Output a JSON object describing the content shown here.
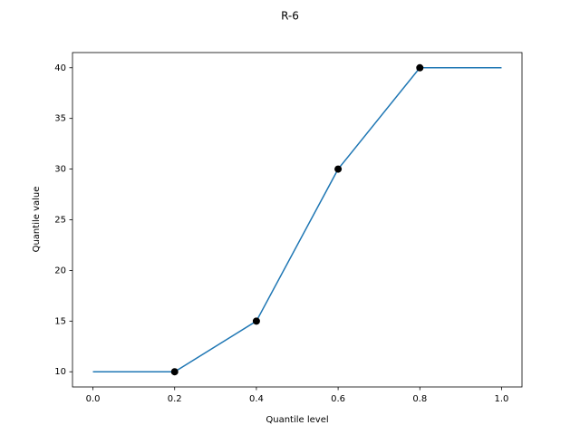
{
  "chart_data": {
    "type": "line",
    "title": "R-6",
    "xlabel": "Quantile level",
    "ylabel": "Quantile value",
    "xlim": [
      -0.05,
      1.05
    ],
    "ylim": [
      8.5,
      41.5
    ],
    "xticks": [
      {
        "value": 0,
        "label": "0.0"
      },
      0.2,
      0.4,
      0.6,
      0.8,
      {
        "value": 1,
        "label": "1.0"
      }
    ],
    "yticks": [
      10,
      15,
      20,
      25,
      30,
      35,
      40
    ],
    "grid": false,
    "series": [
      {
        "style": "line",
        "color": "#1f77b4",
        "x": [
          0,
          0.2,
          0.4,
          0.6,
          0.8,
          1.0
        ],
        "values": [
          10,
          10,
          15,
          30,
          40,
          40
        ]
      },
      {
        "style": "scatter",
        "color": "#000000",
        "x": [
          0.2,
          0.4,
          0.6,
          0.8
        ],
        "values": [
          10,
          15,
          30,
          40
        ]
      }
    ]
  }
}
